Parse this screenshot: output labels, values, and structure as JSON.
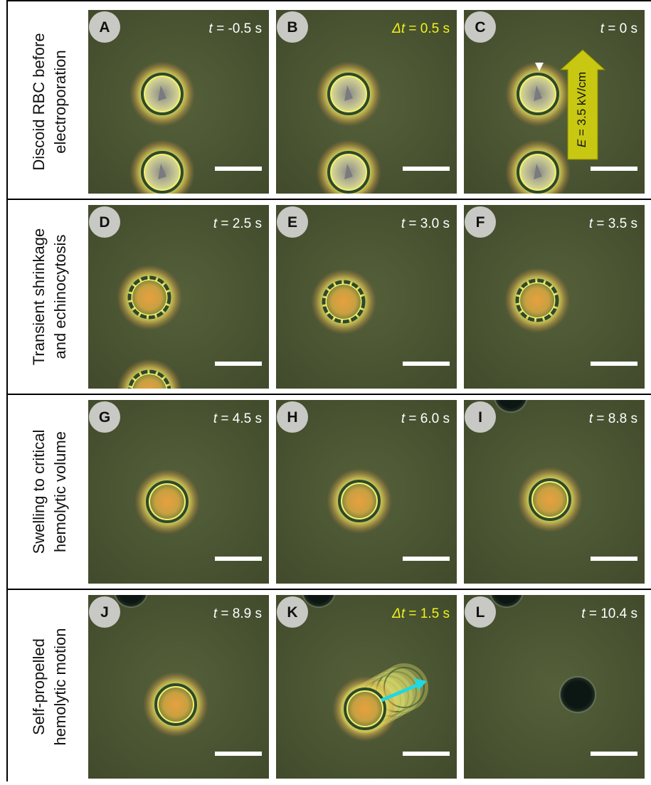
{
  "rows": [
    {
      "label": [
        "Discoid RBC before",
        "electroporation"
      ],
      "panels": [
        {
          "letter": "A",
          "time": {
            "symbol": "t",
            "text": " = -0.5 s"
          }
        },
        {
          "letter": "B",
          "time": {
            "symbol": "Δt",
            "text": " = 0.5 s"
          },
          "time_color": "#f2f21a"
        },
        {
          "letter": "C",
          "time": {
            "symbol": "t",
            "text": " = 0 s"
          },
          "annotation": {
            "symbol": "E",
            "text": " = 3.5 kV/cm"
          }
        }
      ]
    },
    {
      "label": [
        "Transient shrinkage",
        "and echinocytosis"
      ],
      "panels": [
        {
          "letter": "D",
          "time": {
            "symbol": "t",
            "text": " = 2.5 s"
          }
        },
        {
          "letter": "E",
          "time": {
            "symbol": "t",
            "text": " = 3.0 s"
          }
        },
        {
          "letter": "F",
          "time": {
            "symbol": "t",
            "text": " = 3.5 s"
          }
        }
      ]
    },
    {
      "label": [
        "Swelling to critical",
        "hemolytic volume"
      ],
      "panels": [
        {
          "letter": "G",
          "time": {
            "symbol": "t",
            "text": " = 4.5 s"
          }
        },
        {
          "letter": "H",
          "time": {
            "symbol": "t",
            "text": " = 6.0 s"
          }
        },
        {
          "letter": "I",
          "time": {
            "symbol": "t",
            "text": " = 8.8 s"
          }
        }
      ]
    },
    {
      "label": [
        "Self-propelled",
        "hemolytic motion"
      ],
      "panels": [
        {
          "letter": "J",
          "time": {
            "symbol": "t",
            "text": " = 8.9 s"
          }
        },
        {
          "letter": "K",
          "time": {
            "symbol": "Δt",
            "text": " = 1.5 s"
          },
          "time_color": "#f2f21a"
        },
        {
          "letter": "L",
          "time": {
            "symbol": "t",
            "text": " = 10.4 s"
          }
        }
      ]
    }
  ]
}
